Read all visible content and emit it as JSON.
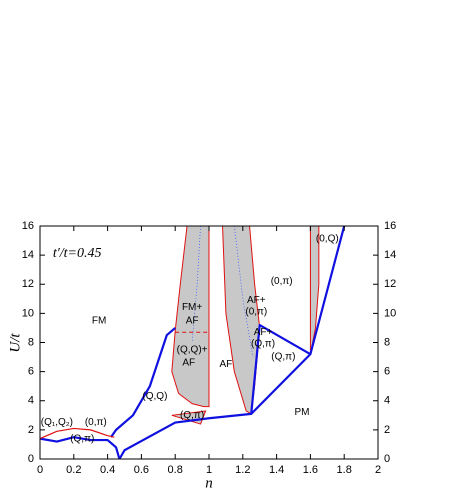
{
  "chart_data": {
    "type": "line",
    "xlabel": "n",
    "ylabel": "U/t",
    "xlim": [
      0,
      2
    ],
    "ylim": [
      0,
      16
    ],
    "y2lim": [
      0,
      16
    ],
    "xticks": [
      0,
      0.2,
      0.4,
      0.6,
      0.8,
      1,
      1.2,
      1.4,
      1.6,
      1.8,
      2
    ],
    "yticks": [
      0,
      2,
      4,
      6,
      8,
      10,
      12,
      14,
      16
    ],
    "y2ticks": [
      0,
      2,
      4,
      6,
      8,
      10,
      12,
      14,
      16
    ],
    "regions": [
      {
        "color": "#c8c8c8",
        "x": [
          0.87,
          0.83,
          0.8,
          0.78,
          0.82,
          0.9,
          0.97,
          1.0,
          1.0
        ],
        "values": [
          16,
          12,
          8.8,
          6,
          4.5,
          3.8,
          3.6,
          3.6,
          16
        ]
      },
      {
        "color": "#c8c8c8",
        "x": [
          1.08,
          1.1,
          1.15,
          1.22,
          1.25,
          1.27,
          1.3,
          1.27,
          1.24
        ],
        "values": [
          16,
          10,
          6,
          3.3,
          3.1,
          5,
          9,
          12,
          16
        ]
      },
      {
        "color": "#c8c8c8",
        "x": [
          1.6,
          1.6,
          1.63,
          1.65,
          1.65
        ],
        "values": [
          16,
          7.2,
          9,
          12,
          16
        ]
      },
      {
        "color": "#c8c8c8",
        "x": [
          0.78,
          0.95,
          0.98
        ],
        "values": [
          3.0,
          2.4,
          3.3
        ]
      }
    ],
    "series": [
      {
        "color": "#1010e0",
        "width": 2.2,
        "x": [
          0,
          0.1,
          0.2,
          0.3,
          0.4,
          0.45,
          0.47
        ],
        "values": [
          1.4,
          1.2,
          1.5,
          1.3,
          1.3,
          0.8,
          0
        ]
      },
      {
        "color": "#1010e0",
        "width": 2.2,
        "x": [
          0.47,
          0.5,
          0.8,
          1.0,
          1.25,
          1.6,
          1.8
        ],
        "values": [
          0,
          0.6,
          2.5,
          2.8,
          3.1,
          7.2,
          16
        ]
      },
      {
        "color": "#1010e0",
        "width": 2.2,
        "x": [
          0.42,
          0.45,
          0.55,
          0.65,
          0.75,
          0.8
        ],
        "values": [
          1.5,
          2.0,
          3.0,
          5.0,
          8.5,
          9.0
        ]
      },
      {
        "color": "#1010e0",
        "width": 2.2,
        "x": [
          1.25,
          1.3,
          1.6
        ],
        "values": [
          3.1,
          9.2,
          7.2
        ]
      },
      {
        "color": "#e01010",
        "width": 1.2,
        "x": [
          0,
          0.1,
          0.2,
          0.3,
          0.4,
          0.44
        ],
        "values": [
          1.4,
          1.9,
          2.1,
          2.0,
          1.6,
          1.5
        ]
      },
      {
        "color": "#e01010",
        "width": 1,
        "dash": true,
        "x": [
          0.8,
          1.0
        ],
        "values": [
          8.7,
          8.7
        ]
      },
      {
        "color": "#4060ff",
        "width": 0.8,
        "dot": true,
        "x": [
          0.95,
          0.93,
          0.9
        ],
        "values": [
          16,
          12,
          8
        ]
      },
      {
        "color": "#4060ff",
        "width": 0.8,
        "dot": true,
        "x": [
          1.15,
          1.2,
          1.26
        ],
        "values": [
          16,
          11,
          7
        ]
      }
    ],
    "annotations": [
      {
        "text": "t′/t=0.45",
        "x": 0.22,
        "y": 14.1,
        "italic": true
      },
      {
        "text": "FM",
        "x": 0.35,
        "y": 9.5
      },
      {
        "text": "FM+",
        "x": 0.9,
        "y": 10.4
      },
      {
        "text": "AF",
        "x": 0.9,
        "y": 9.5
      },
      {
        "text": "(Q,Q)+",
        "x": 0.9,
        "y": 7.5
      },
      {
        "text": "AF",
        "x": 0.88,
        "y": 6.6
      },
      {
        "text": "(Q,Q)",
        "x": 0.68,
        "y": 4.3
      },
      {
        "text": "(Q,π)",
        "x": 0.9,
        "y": 3.0
      },
      {
        "text": "AF",
        "x": 1.1,
        "y": 6.5
      },
      {
        "text": "AF+",
        "x": 1.28,
        "y": 10.9
      },
      {
        "text": "(0,π)",
        "x": 1.28,
        "y": 10.1
      },
      {
        "text": "AF+",
        "x": 1.32,
        "y": 8.7
      },
      {
        "text": "(Q,π)",
        "x": 1.32,
        "y": 7.9
      },
      {
        "text": "(0,π)",
        "x": 1.43,
        "y": 12.2
      },
      {
        "text": "(Q,π)",
        "x": 1.44,
        "y": 7.0
      },
      {
        "text": "(0,Q)",
        "x": 1.7,
        "y": 15.1
      },
      {
        "text": "PM",
        "x": 1.55,
        "y": 3.2
      },
      {
        "text": "(Q₁,Q₂)",
        "x": 0.1,
        "y": 2.5
      },
      {
        "text": "(0,π)",
        "x": 0.33,
        "y": 2.5
      },
      {
        "text": "(Q,π)",
        "x": 0.25,
        "y": 1.4
      }
    ]
  }
}
